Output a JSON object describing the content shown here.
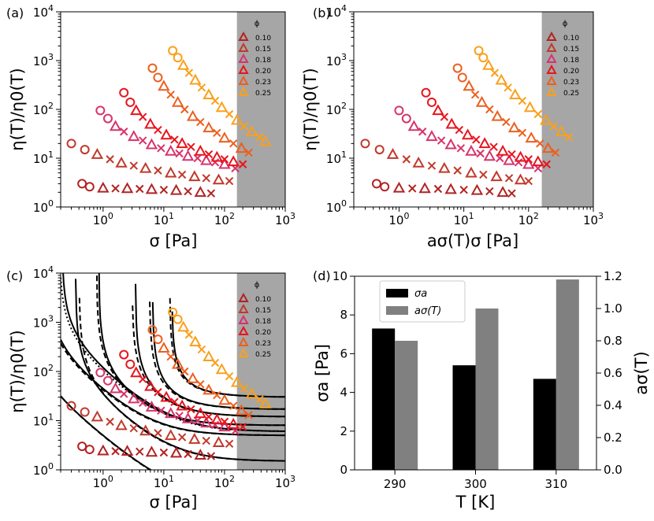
{
  "chart_data": [
    {
      "panel": "(a)",
      "type": "scatter",
      "xlabel": "σ [Pa]",
      "ylabel": "η(T)/η0(T)",
      "xscale": "log",
      "yscale": "log",
      "xlim": [
        0.2,
        1000
      ],
      "ylim": [
        1,
        10000
      ],
      "xticks": [
        "10^0",
        "10^1",
        "10^2",
        "10^3"
      ],
      "yticks": [
        "10^0",
        "10^1",
        "10^2",
        "10^3",
        "10^4"
      ],
      "shaded_region": [
        160,
        1000
      ],
      "legend_title": "ϕ",
      "legend_position": "top-right",
      "series": [
        {
          "name": "0.10",
          "color": "#b22222",
          "x": [
            0.45,
            0.6,
            1.0,
            1.6,
            2.5,
            4,
            6.3,
            10,
            16,
            25,
            40,
            60
          ],
          "y": [
            3.0,
            2.6,
            2.45,
            2.4,
            2.4,
            2.35,
            2.3,
            2.25,
            2.2,
            2.1,
            2.0,
            1.9
          ]
        },
        {
          "name": "0.15",
          "color": "#c0392b",
          "x": [
            0.3,
            0.5,
            0.8,
            1.3,
            2,
            3.2,
            5,
            8,
            13,
            20,
            32,
            50,
            80,
            120
          ],
          "y": [
            20,
            15,
            12,
            9.5,
            8,
            7,
            6.2,
            5.6,
            5,
            4.6,
            4.2,
            3.9,
            3.6,
            3.4
          ]
        },
        {
          "name": "0.18",
          "color": "#d6336c",
          "x": [
            0.9,
            1.2,
            1.6,
            2.2,
            3.2,
            4.5,
            6.3,
            9,
            13,
            18,
            25,
            36,
            50,
            70,
            100,
            150
          ],
          "y": [
            95,
            65,
            45,
            35,
            28,
            23,
            19,
            16,
            14,
            12.5,
            11,
            10,
            9,
            8.2,
            7.5,
            6.2
          ]
        },
        {
          "name": "0.20",
          "color": "#e8141c",
          "x": [
            2.2,
            2.8,
            3.5,
            4.5,
            6,
            8,
            11,
            15,
            20,
            28,
            40,
            55,
            75,
            100,
            140,
            200
          ],
          "y": [
            220,
            140,
            95,
            70,
            50,
            38,
            30,
            24,
            20,
            17,
            14,
            12,
            10.5,
            9.5,
            8.5,
            7.5
          ]
        },
        {
          "name": "0.23",
          "color": "#ec5f1e",
          "x": [
            6.5,
            8,
            10,
            13,
            17,
            22,
            30,
            40,
            55,
            75,
            100,
            140,
            190,
            250
          ],
          "y": [
            700,
            450,
            300,
            200,
            140,
            100,
            72,
            55,
            42,
            33,
            26,
            20,
            16,
            13
          ]
        },
        {
          "name": "0.25",
          "color": "#f9a01b",
          "x": [
            14,
            17,
            21,
            26,
            33,
            42,
            55,
            70,
            90,
            120,
            160,
            210,
            280,
            380,
            470
          ],
          "y": [
            1600,
            1150,
            800,
            560,
            400,
            280,
            200,
            150,
            110,
            80,
            60,
            45,
            35,
            27,
            22
          ]
        }
      ]
    },
    {
      "panel": "(b)",
      "type": "scatter",
      "xlabel": "aσ(T)σ [Pa]",
      "ylabel": "η(T)/η0(T)",
      "xscale": "log",
      "yscale": "log",
      "xlim": [
        0.2,
        1000
      ],
      "ylim": [
        1,
        10000
      ],
      "xticks": [
        "10^0",
        "10^1",
        "10^2",
        "10^3"
      ],
      "yticks": [
        "10^0",
        "10^1",
        "10^2",
        "10^3",
        "10^4"
      ],
      "shaded_region": [
        160,
        1000
      ],
      "legend_title": "ϕ",
      "legend_position": "top-right",
      "series": [
        {
          "name": "0.10",
          "color": "#b22222",
          "x": [
            0.45,
            0.6,
            1.0,
            1.6,
            2.5,
            4,
            6.3,
            10,
            16,
            25,
            40,
            55
          ],
          "y": [
            3.0,
            2.6,
            2.45,
            2.4,
            2.4,
            2.35,
            2.3,
            2.25,
            2.2,
            2.1,
            2.0,
            1.9
          ]
        },
        {
          "name": "0.15",
          "color": "#c0392b",
          "x": [
            0.3,
            0.5,
            0.8,
            1.3,
            2,
            3.2,
            5,
            8,
            13,
            20,
            32,
            50,
            75,
            100
          ],
          "y": [
            20,
            15,
            12,
            9.5,
            8,
            7,
            6.2,
            5.6,
            5,
            4.6,
            4.2,
            3.9,
            3.6,
            3.4
          ]
        },
        {
          "name": "0.18",
          "color": "#d6336c",
          "x": [
            1.0,
            1.3,
            1.7,
            2.3,
            3.2,
            4.5,
            6.3,
            9,
            13,
            18,
            25,
            36,
            50,
            70,
            100,
            140
          ],
          "y": [
            95,
            65,
            45,
            35,
            28,
            23,
            19,
            16,
            14,
            12.5,
            11,
            10,
            9,
            8.2,
            7.5,
            6.2
          ]
        },
        {
          "name": "0.20",
          "color": "#e8141c",
          "x": [
            2.6,
            3.2,
            4,
            5,
            6.5,
            8.5,
            11.5,
            15.5,
            21,
            29,
            40,
            55,
            75,
            100,
            140,
            190
          ],
          "y": [
            220,
            140,
            95,
            70,
            50,
            38,
            30,
            24,
            20,
            17,
            14,
            12,
            10.5,
            9.5,
            8.5,
            7.5
          ]
        },
        {
          "name": "0.23",
          "color": "#ec5f1e",
          "x": [
            8,
            9.5,
            12,
            15,
            19,
            25,
            33,
            45,
            60,
            80,
            110,
            150,
            200,
            260
          ],
          "y": [
            700,
            450,
            300,
            200,
            140,
            100,
            72,
            55,
            42,
            33,
            26,
            20,
            16,
            13
          ]
        },
        {
          "name": "0.25",
          "color": "#f9a01b",
          "x": [
            17,
            20,
            24,
            30,
            38,
            48,
            62,
            80,
            105,
            140,
            185,
            245,
            320,
            420
          ],
          "y": [
            1600,
            1150,
            800,
            560,
            400,
            280,
            200,
            150,
            110,
            80,
            60,
            45,
            35,
            27
          ]
        }
      ]
    },
    {
      "panel": "(c)",
      "type": "scatter",
      "xlabel": "σ [Pa]",
      "ylabel": "η(T)/η0(T)",
      "xscale": "log",
      "yscale": "log",
      "xlim": [
        0.2,
        1000
      ],
      "ylim": [
        1,
        10000
      ],
      "xticks": [
        "10^0",
        "10^1",
        "10^2",
        "10^3"
      ],
      "yticks": [
        "10^0",
        "10^1",
        "10^2",
        "10^3",
        "10^4"
      ],
      "shaded_region": [
        160,
        1000
      ],
      "legend_title": "ϕ",
      "legend_position": "top-right",
      "fit_lines": [
        {
          "style": "solid",
          "sigma0": 0.055,
          "A": 4.5,
          "B": 0.25
        },
        {
          "style": "dashed",
          "sigma0": 0.06,
          "A": 4.4,
          "B": 0.25
        },
        {
          "style": "solid",
          "sigma0": 0.35,
          "A": 22,
          "B": 1.5
        },
        {
          "style": "dashed",
          "sigma0": 0.4,
          "A": 21,
          "B": 1.5
        },
        {
          "style": "solid",
          "sigma0": 0.12,
          "A": 35,
          "B": 5
        },
        {
          "style": "dashed",
          "sigma0": 0.11,
          "A": 33,
          "B": 5
        },
        {
          "style": "solid",
          "sigma0": 0.21,
          "A": 90,
          "B": 6
        },
        {
          "style": "dotted",
          "sigma0": 0.19,
          "A": 80,
          "B": 6
        },
        {
          "style": "solid",
          "sigma0": 0.85,
          "A": 60,
          "B": 8
        },
        {
          "style": "dashed",
          "sigma0": 0.78,
          "A": 58,
          "B": 8
        },
        {
          "style": "solid",
          "sigma0": 3.4,
          "A": 120,
          "B": 12
        },
        {
          "style": "dashed",
          "sigma0": 3.0,
          "A": 115,
          "B": 12
        },
        {
          "style": "solid",
          "sigma0": 6.5,
          "A": 180,
          "B": 17
        },
        {
          "style": "dashed",
          "sigma0": 5.8,
          "A": 170,
          "B": 17
        },
        {
          "style": "solid",
          "sigma0": 13.5,
          "A": 400,
          "B": 30
        },
        {
          "style": "dashed",
          "sigma0": 12.5,
          "A": 380,
          "B": 30
        }
      ],
      "series": [
        {
          "name": "0.10",
          "color": "#b22222",
          "x": [
            0.45,
            0.6,
            1.0,
            1.6,
            2.5,
            4,
            6.3,
            10,
            16,
            25,
            40,
            60
          ],
          "y": [
            3.0,
            2.6,
            2.45,
            2.4,
            2.4,
            2.35,
            2.3,
            2.25,
            2.2,
            2.1,
            2.0,
            1.9
          ]
        },
        {
          "name": "0.15",
          "color": "#c0392b",
          "x": [
            0.3,
            0.5,
            0.8,
            1.3,
            2,
            3.2,
            5,
            8,
            13,
            20,
            32,
            50,
            80,
            120
          ],
          "y": [
            20,
            15,
            12,
            9.5,
            8,
            7,
            6.2,
            5.6,
            5,
            4.6,
            4.2,
            3.9,
            3.6,
            3.4
          ]
        },
        {
          "name": "0.18",
          "color": "#d6336c",
          "x": [
            0.9,
            1.2,
            1.6,
            2.2,
            3.2,
            4.5,
            6.3,
            9,
            13,
            18,
            25,
            36,
            50,
            70,
            100,
            150
          ],
          "y": [
            95,
            65,
            45,
            35,
            28,
            23,
            19,
            16,
            14,
            12.5,
            11,
            10,
            9,
            8.2,
            7.5,
            6.2
          ]
        },
        {
          "name": "0.20",
          "color": "#e8141c",
          "x": [
            2.2,
            2.8,
            3.5,
            4.5,
            6,
            8,
            11,
            15,
            20,
            28,
            40,
            55,
            75,
            100,
            140,
            200
          ],
          "y": [
            220,
            140,
            95,
            70,
            50,
            38,
            30,
            24,
            20,
            17,
            14,
            12,
            10.5,
            9.5,
            8.5,
            7.5
          ]
        },
        {
          "name": "0.23",
          "color": "#ec5f1e",
          "x": [
            6.5,
            8,
            10,
            13,
            17,
            22,
            30,
            40,
            55,
            75,
            100,
            140,
            190,
            250
          ],
          "y": [
            700,
            450,
            300,
            200,
            140,
            100,
            72,
            55,
            42,
            33,
            26,
            20,
            16,
            13
          ]
        },
        {
          "name": "0.25",
          "color": "#f9a01b",
          "x": [
            14,
            17,
            21,
            26,
            33,
            42,
            55,
            70,
            90,
            120,
            160,
            210,
            280,
            380,
            470
          ],
          "y": [
            1600,
            1150,
            800,
            560,
            400,
            280,
            200,
            150,
            110,
            80,
            60,
            45,
            35,
            27,
            22
          ]
        }
      ]
    },
    {
      "panel": "(d)",
      "type": "bar",
      "xlabel": "T [K]",
      "ylabel": "σa [Pa]",
      "ylabel_right": "aσ(T)",
      "categories": [
        "290",
        "300",
        "310"
      ],
      "ylim": [
        0,
        10
      ],
      "ylim_right": [
        0,
        1.2
      ],
      "yticks": [
        "0",
        "2",
        "4",
        "6",
        "8",
        "10"
      ],
      "yticks_right": [
        "0.0",
        "0.2",
        "0.4",
        "0.6",
        "0.8",
        "1.0",
        "1.2"
      ],
      "legend_position": "top-left",
      "series": [
        {
          "name": "σa",
          "color": "#000000",
          "axis": "left",
          "values": [
            7.3,
            5.4,
            4.7
          ]
        },
        {
          "name": "aσ(T)",
          "color": "#808080",
          "axis": "right",
          "values": [
            0.8,
            1.0,
            1.18
          ]
        }
      ]
    }
  ]
}
